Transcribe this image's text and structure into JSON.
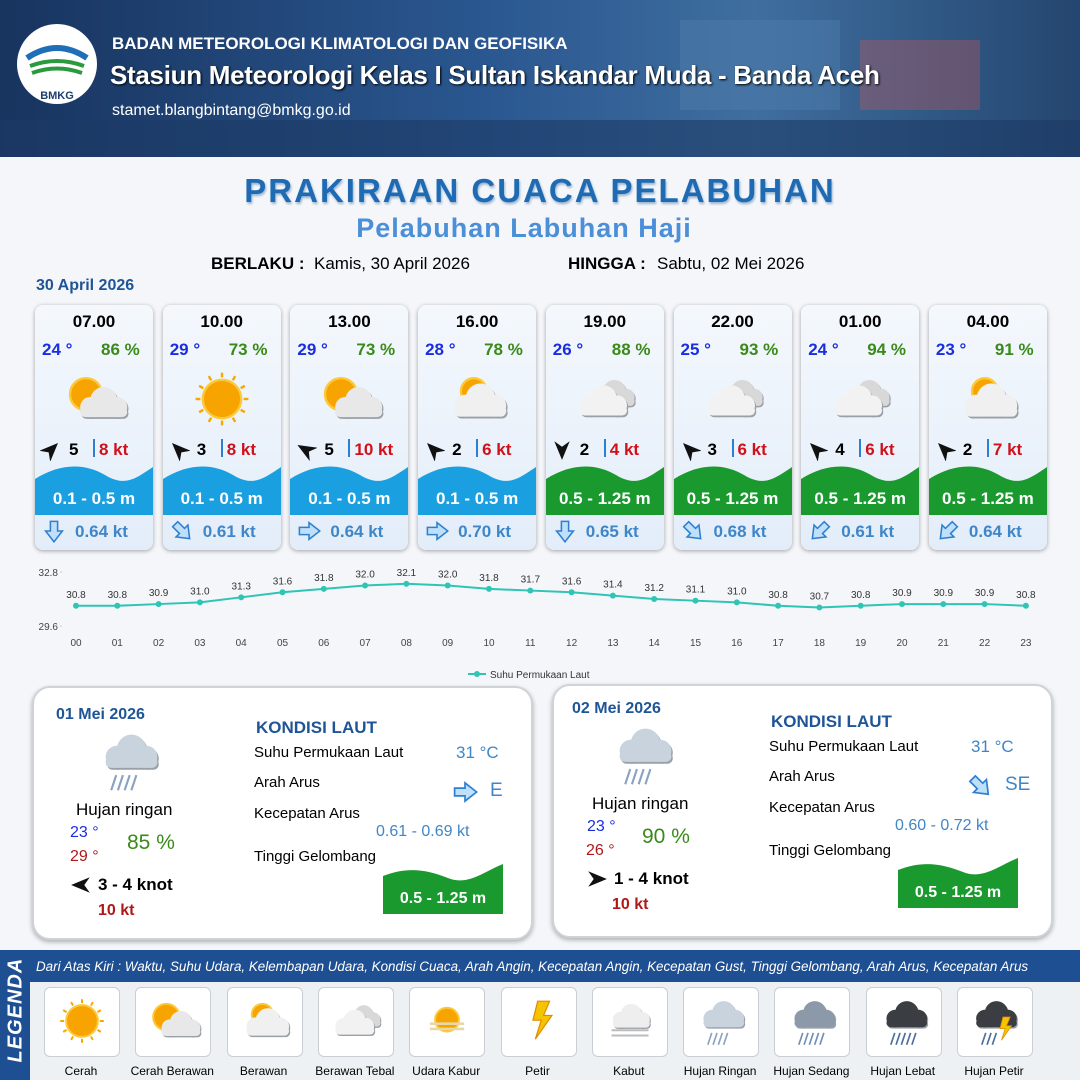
{
  "header": {
    "logo": "BMKG",
    "organization": "BADAN METEOROLOGI KLIMATOLOGI DAN GEOFISIKA",
    "station": "Stasiun Meteorologi Kelas I Sultan Iskandar Muda - Banda Aceh",
    "email": "stamet.blangbintang@bmkg.go.id"
  },
  "title": "PRAKIRAAN CUACA PELABUHAN",
  "subtitle": "Pelabuhan Labuhan Haji",
  "validity": {
    "from_label": "BERLAKU :",
    "from": "Kamis, 30 April 2026",
    "to_label": "HINGGA :",
    "to": "Sabtu, 02 Mei 2026"
  },
  "date": "30 April 2026",
  "cards": [
    {
      "time": "07.00",
      "temp": "24 °",
      "humidity": "86 %",
      "icon": "Cerah Berawan",
      "wind_deg": 45,
      "wind": "5",
      "gust": "8 kt",
      "wave": "0.1 - 0.5 m",
      "wave_color": "#1a9fe0",
      "current_deg": 180,
      "current": "0.64 kt"
    },
    {
      "time": "10.00",
      "temp": "29 °",
      "humidity": "73 %",
      "icon": "Cerah",
      "wind_deg": 315,
      "wind": "3",
      "gust": "8 kt",
      "wave": "0.1 - 0.5 m",
      "wave_color": "#1a9fe0",
      "current_deg": 135,
      "current": "0.61 kt"
    },
    {
      "time": "13.00",
      "temp": "29 °",
      "humidity": "73 %",
      "icon": "Cerah Berawan",
      "wind_deg": 300,
      "wind": "5",
      "gust": "10 kt",
      "wave": "0.1 - 0.5 m",
      "wave_color": "#1a9fe0",
      "current_deg": 90,
      "current": "0.64 kt"
    },
    {
      "time": "16.00",
      "temp": "28 °",
      "humidity": "78 %",
      "icon": "Berawan",
      "wind_deg": 315,
      "wind": "2",
      "gust": "6 kt",
      "wave": "0.1 - 0.5 m",
      "wave_color": "#1a9fe0",
      "current_deg": 90,
      "current": "0.70 kt"
    },
    {
      "time": "19.00",
      "temp": "26 °",
      "humidity": "88 %",
      "icon": "Berawan Tebal",
      "wind_deg": 180,
      "wind": "2",
      "gust": "4 kt",
      "wave": "0.5 - 1.25 m",
      "wave_color": "#1a9a2e",
      "current_deg": 180,
      "current": "0.65 kt"
    },
    {
      "time": "22.00",
      "temp": "25 °",
      "humidity": "93 %",
      "icon": "Berawan Tebal",
      "wind_deg": 315,
      "wind": "3",
      "gust": "6 kt",
      "wave": "0.5 - 1.25 m",
      "wave_color": "#1a9a2e",
      "current_deg": 135,
      "current": "0.68 kt"
    },
    {
      "time": "01.00",
      "temp": "24 °",
      "humidity": "94 %",
      "icon": "Berawan Tebal",
      "wind_deg": 315,
      "wind": "4",
      "gust": "6 kt",
      "wave": "0.5 - 1.25 m",
      "wave_color": "#1a9a2e",
      "current_deg": 225,
      "current": "0.61 kt"
    },
    {
      "time": "04.00",
      "temp": "23 °",
      "humidity": "91 %",
      "icon": "Berawan",
      "wind_deg": 315,
      "wind": "2",
      "gust": "7 kt",
      "wave": "0.5 - 1.25 m",
      "wave_color": "#1a9a2e",
      "current_deg": 225,
      "current": "0.64 kt"
    }
  ],
  "chart_data": {
    "type": "line",
    "categories": [
      "00",
      "01",
      "02",
      "03",
      "04",
      "05",
      "06",
      "07",
      "08",
      "09",
      "10",
      "11",
      "12",
      "13",
      "14",
      "15",
      "16",
      "17",
      "18",
      "19",
      "20",
      "21",
      "22",
      "23"
    ],
    "series": [
      {
        "name": "Suhu Permukaan Laut",
        "color": "#2ec4b6",
        "values": [
          30.8,
          30.8,
          30.9,
          31.0,
          31.3,
          31.6,
          31.8,
          32.0,
          32.1,
          32.0,
          31.8,
          31.7,
          31.6,
          31.4,
          31.2,
          31.1,
          31.0,
          30.8,
          30.7,
          30.8,
          30.9,
          30.9,
          30.9,
          30.8
        ],
        "value_labels": [
          "30.8",
          "30.8",
          "30.9",
          "31.0",
          "31.3",
          "31.6",
          "31.8",
          "32.0",
          "32.1",
          "32.0",
          "31.8",
          "31.7",
          "31.6",
          "31.4",
          "31.2",
          "31.1",
          "31.0",
          "30.8",
          "30.7",
          "30.8",
          "30.9",
          "30.9",
          "30.9",
          "30.8"
        ]
      }
    ],
    "ylim": [
      29.6,
      32.8
    ],
    "yticks": [
      29.6,
      32.8
    ],
    "grid": false
  },
  "days": [
    {
      "date": "01 Mei 2026",
      "icon": "Hujan Ringan",
      "condition": "Hujan ringan",
      "temp_min": "23 °",
      "temp_max": "29 °",
      "humidity": "85 %",
      "wind_deg": 270,
      "wind": "3  - 4 knot",
      "gust": "10 kt",
      "sea_title": "KONDISI LAUT",
      "sst_label": "Suhu Permukaan Laut",
      "sst": "31 °C",
      "current_dir_label": "Arah Arus",
      "current_deg": 90,
      "current_dir": "E",
      "current_speed_label": "Kecepatan Arus",
      "current_speed": "0.61  - 0.69 kt",
      "wave_label": "Tinggi Gelombang",
      "wave": "0.5 - 1.25 m",
      "wave_color": "#1a9a2e"
    },
    {
      "date": "02 Mei 2026",
      "icon": "Hujan Ringan",
      "condition": "Hujan ringan",
      "temp_min": "23 °",
      "temp_max": "26 °",
      "humidity": "90 %",
      "wind_deg": 90,
      "wind": "1  - 4 knot",
      "gust": "10 kt",
      "sea_title": "KONDISI LAUT",
      "sst_label": "Suhu Permukaan Laut",
      "sst": "31 °C",
      "current_dir_label": "Arah Arus",
      "current_deg": 135,
      "current_dir": "SE",
      "current_speed_label": "Kecepatan Arus",
      "current_speed": "0.60 - 0.72 kt",
      "wave_label": "Tinggi Gelombang",
      "wave": "0.5 - 1.25 m",
      "wave_color": "#1a9a2e"
    }
  ],
  "legend": {
    "label": "LEGENDA",
    "description": "Dari Atas Kiri : Waktu, Suhu Udara, Kelembapan Udara, Kondisi Cuaca, Arah Angin, Kecepatan Angin, Kecepatan Gust, Tinggi Gelombang, Arah Arus, Kecepatan Arus",
    "items": [
      "Cerah",
      "Cerah Berawan",
      "Berawan",
      "Berawan Tebal",
      "Udara Kabur",
      "Petir",
      "Kabut",
      "Hujan Ringan",
      "Hujan Sedang",
      "Hujan Lebat",
      "Hujan Petir"
    ]
  }
}
